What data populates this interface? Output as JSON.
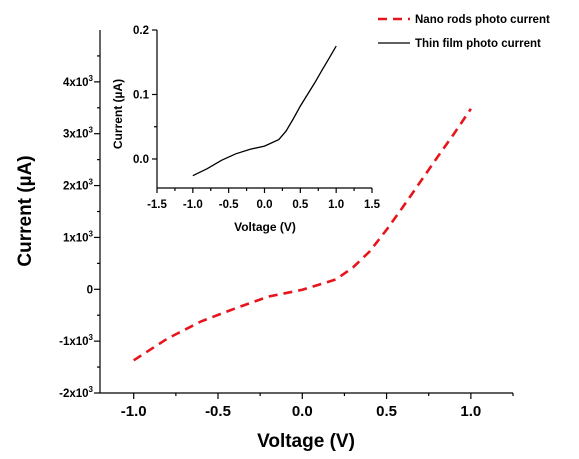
{
  "colors": {
    "nano_series": "#e8141c",
    "thin_series": "#000000",
    "axis": "#000000"
  },
  "chart_data": [
    {
      "type": "line",
      "role": "main",
      "xlabel": "Voltage (V)",
      "ylabel": "Current (µA)",
      "xlim": [
        -1.2,
        1.25
      ],
      "ylim": [
        -2000,
        5000
      ],
      "x_ticks": [
        -1.0,
        -0.5,
        0.0,
        0.5,
        1.0
      ],
      "x_tick_labels": [
        "-1.0",
        "-0.5",
        "0.0",
        "0.5",
        "1.0"
      ],
      "y_ticks": [
        -2000,
        -1000,
        0,
        1000,
        2000,
        3000,
        4000
      ],
      "y_tick_labels": [
        {
          "base": "-2x10",
          "exp": "3"
        },
        {
          "base": "-1x10",
          "exp": "3"
        },
        {
          "base": "0",
          "exp": ""
        },
        {
          "base": "1x10",
          "exp": "3"
        },
        {
          "base": "2x10",
          "exp": "3"
        },
        {
          "base": "3x10",
          "exp": "3"
        },
        {
          "base": "4x10",
          "exp": "3"
        }
      ],
      "legend_position": "top-right",
      "series": [
        {
          "name": "Nano rods photo current",
          "style": "dashed",
          "x": [
            -1.0,
            -0.8,
            -0.6,
            -0.4,
            -0.2,
            0.0,
            0.2,
            0.3,
            0.4,
            0.5,
            0.6,
            0.7,
            0.8,
            0.9,
            1.0
          ],
          "y": [
            -1370,
            -950,
            -620,
            -370,
            -140,
            -10,
            190,
            420,
            730,
            1150,
            1600,
            2070,
            2540,
            3000,
            3480
          ]
        }
      ]
    },
    {
      "type": "line",
      "role": "inset",
      "xlabel": "Voltage (V)",
      "ylabel": "Current (µA)",
      "xlim": [
        -1.5,
        1.5
      ],
      "ylim": [
        -0.045,
        0.2
      ],
      "x_ticks": [
        -1.5,
        -1.0,
        -0.5,
        0.0,
        0.5,
        1.0,
        1.5
      ],
      "x_tick_labels": [
        "-1.5",
        "-1.0",
        "-0.5",
        "0.0",
        "0.5",
        "1.0",
        "1.5"
      ],
      "y_ticks": [
        0.0,
        0.1,
        0.2
      ],
      "y_tick_labels": [
        "0.0",
        "0.1",
        "0.2"
      ],
      "series": [
        {
          "name": "Thin film photo current",
          "style": "solid",
          "x": [
            -1.0,
            -0.8,
            -0.6,
            -0.4,
            -0.2,
            0.0,
            0.2,
            0.3,
            0.4,
            0.5,
            0.6,
            0.7,
            0.8,
            0.9,
            1.0
          ],
          "y": [
            -0.026,
            -0.015,
            -0.002,
            0.008,
            0.015,
            0.02,
            0.03,
            0.043,
            0.062,
            0.082,
            0.1,
            0.118,
            0.137,
            0.156,
            0.175
          ]
        }
      ]
    }
  ]
}
